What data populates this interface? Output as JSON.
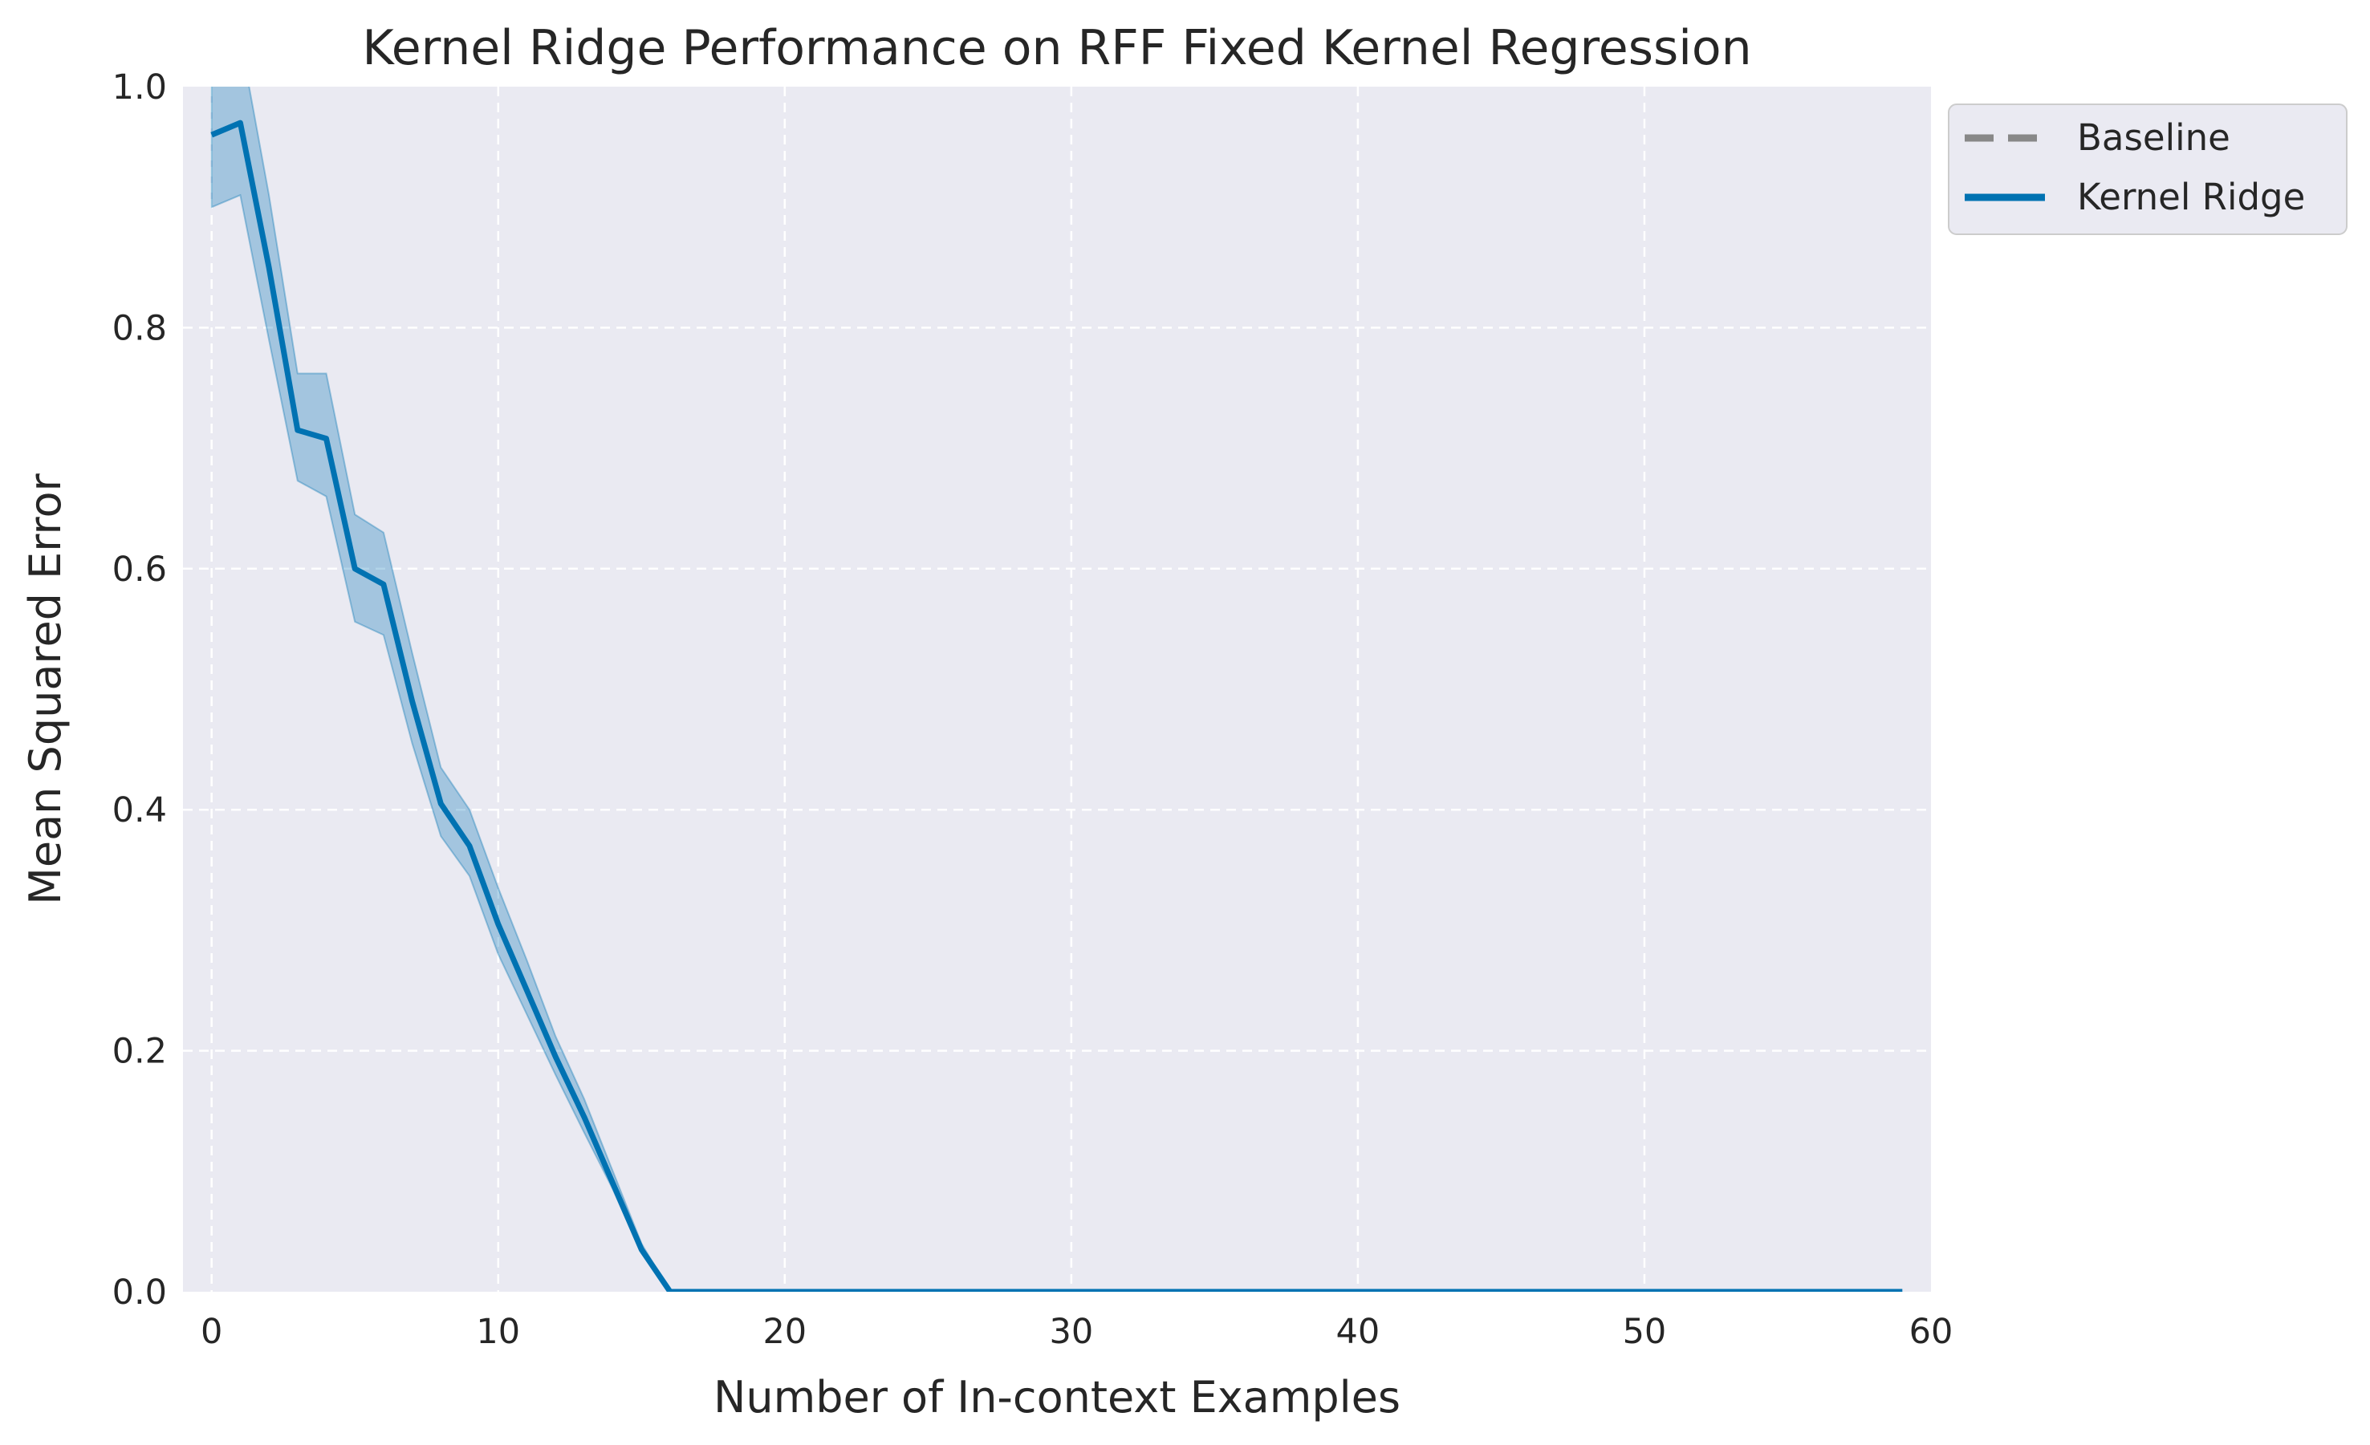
{
  "chart_data": {
    "type": "line",
    "title": "Kernel Ridge Performance on RFF Fixed Kernel Regression",
    "xlabel": "Number of In-context Examples",
    "ylabel": "Mean Squared Error",
    "xlim": [
      -1,
      60
    ],
    "ylim": [
      0,
      1
    ],
    "xticks": [
      "0",
      "10",
      "20",
      "30",
      "40",
      "50",
      "60"
    ],
    "yticks": [
      "0.0",
      "0.2",
      "0.4",
      "0.6",
      "0.8",
      "1.0"
    ],
    "grid": true,
    "legend": {
      "placement": "outside-top-right",
      "entries": [
        {
          "label": "Baseline",
          "style": "dashed",
          "color": "#888888"
        },
        {
          "label": "Kernel Ridge",
          "style": "solid",
          "color": "#0072B2"
        }
      ]
    },
    "series": [
      {
        "name": "Kernel Ridge",
        "color": "#0072B2",
        "x": [
          0,
          1,
          2,
          3,
          4,
          5,
          6,
          7,
          8,
          9,
          10,
          11,
          12,
          13,
          14,
          15,
          16,
          17,
          18,
          19,
          20,
          21,
          22,
          23,
          24,
          25,
          26,
          27,
          28,
          29,
          30,
          31,
          32,
          33,
          34,
          35,
          36,
          37,
          38,
          39,
          40,
          41,
          42,
          43,
          44,
          45,
          46,
          47,
          48,
          49,
          50,
          51,
          52,
          53,
          54,
          55,
          56,
          57,
          58,
          59
        ],
        "y": [
          0.96,
          0.97,
          0.85,
          0.715,
          0.708,
          0.6,
          0.587,
          0.49,
          0.405,
          0.37,
          0.305,
          0.25,
          0.195,
          0.145,
          0.09,
          0.035,
          0,
          0,
          0,
          0,
          0,
          0,
          0,
          0,
          0,
          0,
          0,
          0,
          0,
          0,
          0,
          0,
          0,
          0,
          0,
          0,
          0,
          0,
          0,
          0,
          0,
          0,
          0,
          0,
          0,
          0,
          0,
          0,
          0,
          0,
          0,
          0,
          0,
          0,
          0,
          0,
          0,
          0,
          0,
          0
        ],
        "ci_lower": [
          0.9,
          0.91,
          0.79,
          0.673,
          0.66,
          0.556,
          0.545,
          0.455,
          0.378,
          0.345,
          0.28,
          0.23,
          0.18,
          0.132,
          0.085,
          0.032,
          0,
          0,
          0,
          0,
          0,
          0,
          0,
          0,
          0,
          0,
          0,
          0,
          0,
          0,
          0,
          0,
          0,
          0,
          0,
          0,
          0,
          0,
          0,
          0,
          0,
          0,
          0,
          0,
          0,
          0,
          0,
          0,
          0,
          0,
          0,
          0,
          0,
          0,
          0,
          0,
          0,
          0,
          0,
          0
        ],
        "ci_upper": [
          1.03,
          1.04,
          0.91,
          0.762,
          0.762,
          0.645,
          0.63,
          0.53,
          0.435,
          0.4,
          0.335,
          0.275,
          0.212,
          0.16,
          0.1,
          0.04,
          0,
          0,
          0,
          0,
          0,
          0,
          0,
          0,
          0,
          0,
          0,
          0,
          0,
          0,
          0,
          0,
          0,
          0,
          0,
          0,
          0,
          0,
          0,
          0,
          0,
          0,
          0,
          0,
          0,
          0,
          0,
          0,
          0,
          0,
          0,
          0,
          0,
          0,
          0,
          0,
          0,
          0,
          0,
          0
        ]
      }
    ]
  }
}
